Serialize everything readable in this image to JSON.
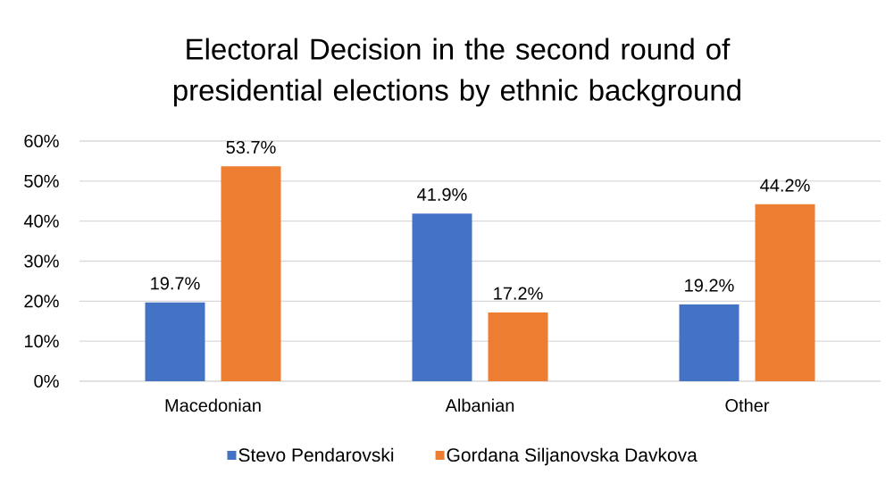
{
  "chart_data": {
    "type": "bar",
    "title": "Electoral Decision in the second round of presidential elections by ethnic background",
    "categories": [
      "Macedonian",
      "Albanian",
      "Other"
    ],
    "series": [
      {
        "name": "Stevo Pendarovski",
        "color": "#4472c4",
        "values": [
          19.7,
          41.9,
          19.2
        ],
        "value_labels": [
          "19.7%",
          "41.9%",
          "19.2%"
        ]
      },
      {
        "name": "Gordana Siljanovska Davkova",
        "color": "#ed7d31",
        "values": [
          53.7,
          17.2,
          44.2
        ],
        "value_labels": [
          "53.7%",
          "17.2%",
          "44.2%"
        ]
      }
    ],
    "ylim": [
      0,
      60
    ],
    "yticks": [
      {
        "value": 0,
        "label": "0%"
      },
      {
        "value": 10,
        "label": "10%"
      },
      {
        "value": 20,
        "label": "20%"
      },
      {
        "value": 30,
        "label": "30%"
      },
      {
        "value": 40,
        "label": "40%"
      },
      {
        "value": 50,
        "label": "50%"
      },
      {
        "value": 60,
        "label": "60%"
      }
    ],
    "grid": "y",
    "legend": "bottom"
  }
}
